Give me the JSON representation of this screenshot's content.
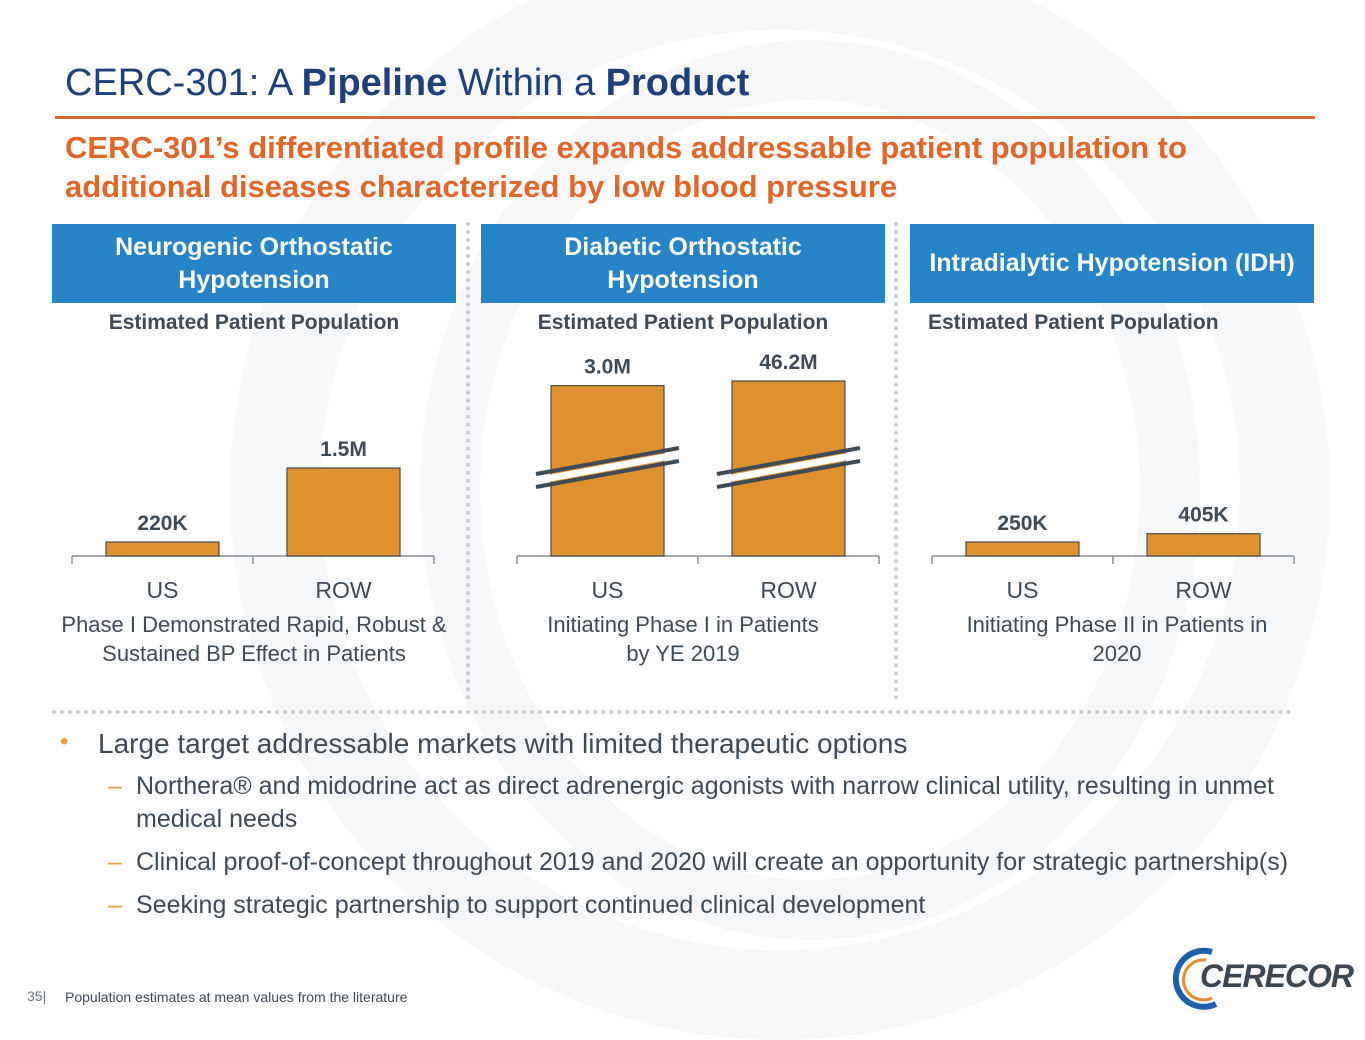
{
  "slide": {
    "title_parts": [
      {
        "text": "CERC-301: A ",
        "bold": false
      },
      {
        "text": "Pipeline",
        "bold": true
      },
      {
        "text": " Within a ",
        "bold": false
      },
      {
        "text": "Product",
        "bold": true
      }
    ],
    "subtitle": "CERC-301’s differentiated profile expands addressable patient population to additional diseases characterized by low blood pressure",
    "page_number": "35|",
    "footnote": "Population estimates at mean values from the literature",
    "logo_text": "CERECOR"
  },
  "colors": {
    "title": "#1f3f7a",
    "accent_orange": "#e0662a",
    "header_blue": "#2683c6",
    "bar_fill": "#e0912f",
    "bullet_marker": "#e8a13c"
  },
  "chart_data": [
    {
      "type": "bar",
      "title": "Neurogenic Orthostatic Hypotension",
      "subtitle": "Estimated Patient Population",
      "categories": [
        "US",
        "ROW"
      ],
      "values": [
        220000,
        1500000
      ],
      "data_labels": [
        "220K",
        "1.5M"
      ],
      "axis_break": false,
      "note": "Phase I Demonstrated Rapid, Robust & Sustained BP Effect in Patients"
    },
    {
      "type": "bar",
      "title": "Diabetic Orthostatic Hypotension",
      "subtitle": "Estimated Patient Population",
      "categories": [
        "US",
        "ROW"
      ],
      "values": [
        3000000,
        46200000
      ],
      "data_labels": [
        "3.0M",
        "46.2M"
      ],
      "axis_break": true,
      "note": "Initiating Phase I in Patients by YE 2019"
    },
    {
      "type": "bar",
      "title": "Intradialytic Hypotension (IDH)",
      "subtitle": "Estimated Patient Population",
      "categories": [
        "US",
        "ROW"
      ],
      "values": [
        250000,
        405000
      ],
      "data_labels": [
        "250K",
        "405K"
      ],
      "axis_break": false,
      "note": "Initiating Phase II in Patients in 2020"
    }
  ],
  "bullets": {
    "main": "Large target addressable markets with limited therapeutic options",
    "subs": [
      "Northera® and midodrine act as direct adrenergic agonists with narrow clinical utility, resulting in unmet medical needs",
      "Clinical proof-of-concept throughout 2019 and 2020 will create an opportunity for strategic partnership(s)",
      "Seeking strategic partnership to support continued clinical development"
    ]
  }
}
